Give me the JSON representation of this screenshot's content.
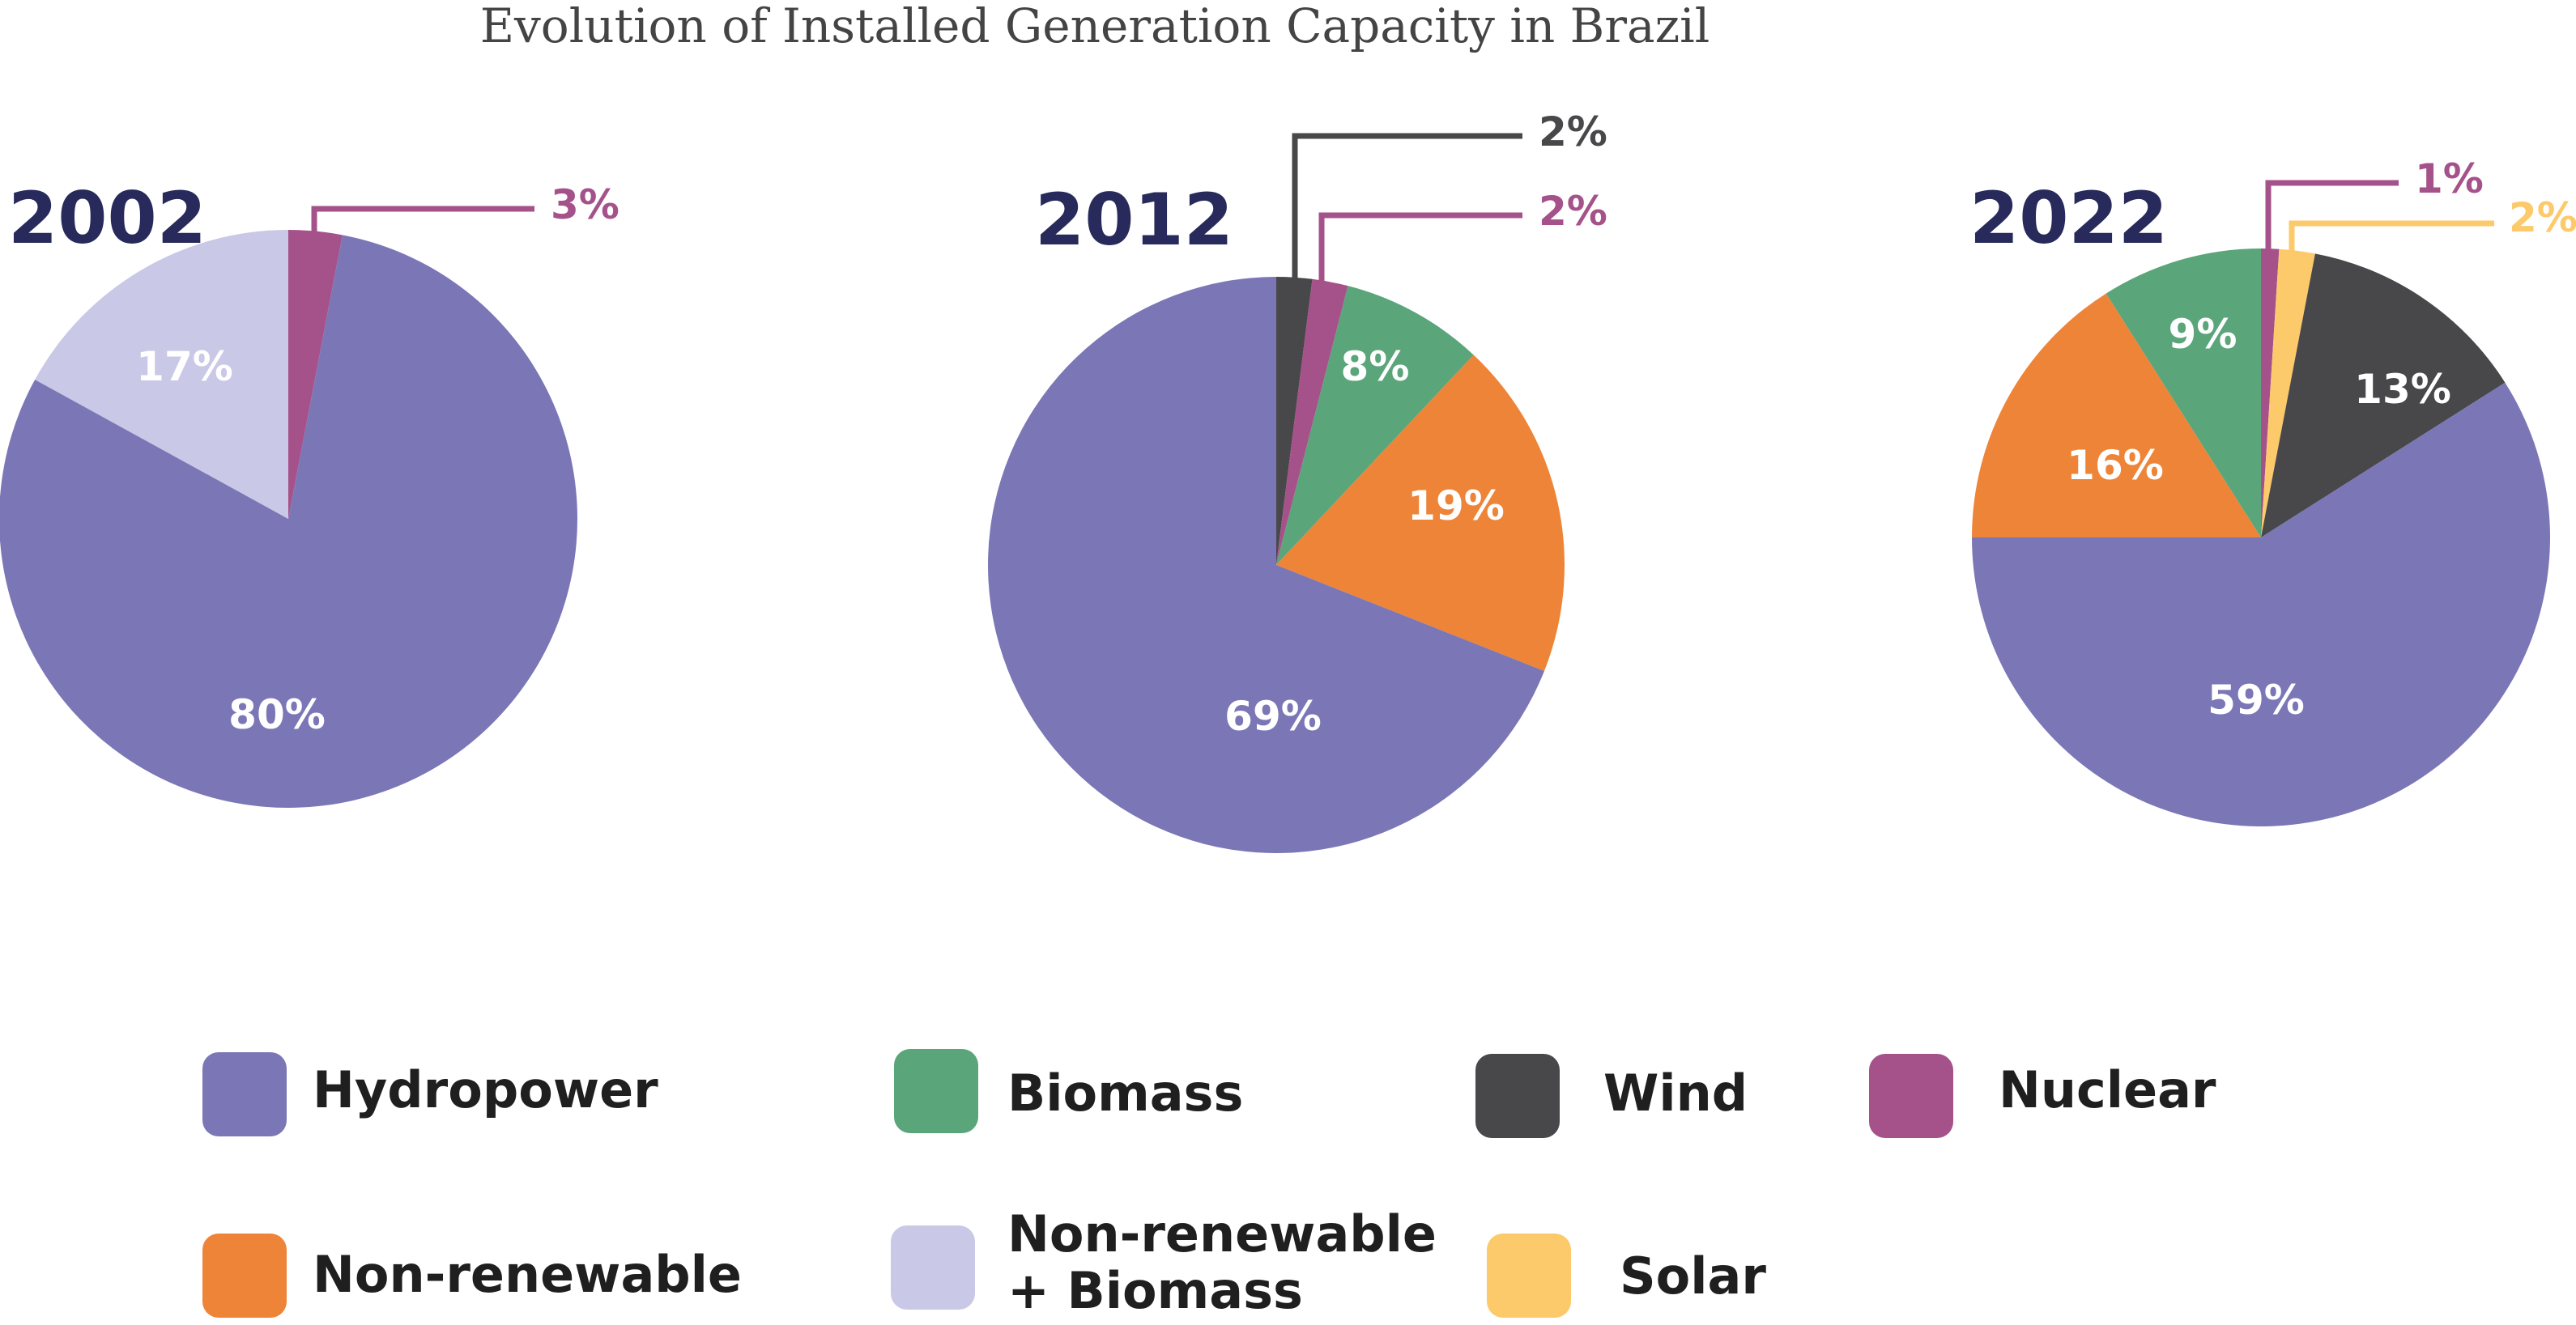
{
  "colors": {
    "Hydropower": "#7b76b6",
    "Biomass": "#5aa57a",
    "Wind": "#48484a",
    "Nuclear": "#a5528a",
    "Non-renewable": "#ee8438",
    "Non-renewable + Biomass": "#c9c8e6",
    "Solar": "#fcca6a"
  },
  "chart_data": {
    "type": "pie",
    "title": "Evolution of Installed Generation Capacity in Brazil",
    "charts": [
      {
        "year": "2002",
        "slices": [
          {
            "name": "Nuclear",
            "value": 3,
            "label": "3%",
            "label_position": "outside"
          },
          {
            "name": "Hydropower",
            "value": 80,
            "label": "80%",
            "label_position": "inside"
          },
          {
            "name": "Non-renewable + Biomass",
            "value": 17,
            "label": "17%",
            "label_position": "inside"
          }
        ]
      },
      {
        "year": "2012",
        "slices": [
          {
            "name": "Wind",
            "value": 2,
            "label": "2%",
            "label_position": "outside"
          },
          {
            "name": "Nuclear",
            "value": 2,
            "label": "2%",
            "label_position": "outside"
          },
          {
            "name": "Biomass",
            "value": 8,
            "label": "8%",
            "label_position": "inside"
          },
          {
            "name": "Non-renewable",
            "value": 19,
            "label": "19%",
            "label_position": "inside"
          },
          {
            "name": "Hydropower",
            "value": 69,
            "label": "69%",
            "label_position": "inside"
          }
        ]
      },
      {
        "year": "2022",
        "slices": [
          {
            "name": "Nuclear",
            "value": 1,
            "label": "1%",
            "label_position": "outside"
          },
          {
            "name": "Solar",
            "value": 2,
            "label": "2%",
            "label_position": "outside"
          },
          {
            "name": "Wind",
            "value": 13,
            "label": "13%",
            "label_position": "inside"
          },
          {
            "name": "Hydropower",
            "value": 59,
            "label": "59%",
            "label_position": "inside"
          },
          {
            "name": "Non-renewable",
            "value": 16,
            "label": "16%",
            "label_position": "inside"
          },
          {
            "name": "Biomass",
            "value": 9,
            "label": "9%",
            "label_position": "inside"
          }
        ]
      }
    ],
    "legend": [
      {
        "label": "Hydropower",
        "lines": [
          "Hydropower"
        ]
      },
      {
        "label": "Biomass",
        "lines": [
          "Biomass"
        ]
      },
      {
        "label": "Wind",
        "lines": [
          "Wind"
        ]
      },
      {
        "label": "Nuclear",
        "lines": [
          "Nuclear"
        ]
      },
      {
        "label": "Non-renewable",
        "lines": [
          "Non-renewable"
        ]
      },
      {
        "label": "Non-renewable + Biomass",
        "lines": [
          "Non-renewable",
          "+ Biomass"
        ]
      },
      {
        "label": "Solar",
        "lines": [
          "Solar"
        ]
      }
    ]
  }
}
